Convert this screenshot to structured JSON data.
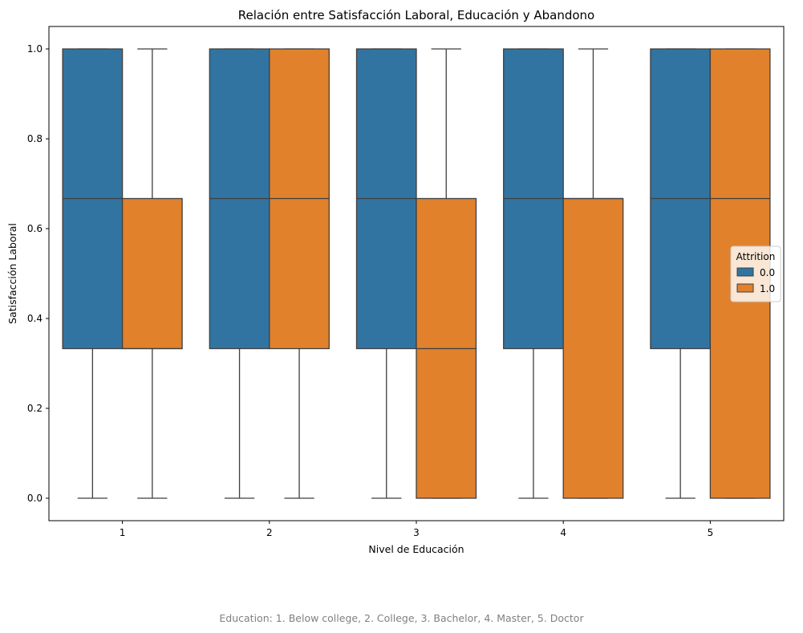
{
  "chart_data": {
    "type": "boxplot",
    "title": "Relación entre Satisfacción Laboral, Educación y Abandono",
    "xlabel": "Nivel de Educación",
    "ylabel": "Satisfacción Laboral",
    "categories": [
      "1",
      "2",
      "3",
      "4",
      "5"
    ],
    "ylim": [
      -0.05,
      1.05
    ],
    "yticks": [
      "0.0",
      "0.2",
      "0.4",
      "0.6",
      "0.8",
      "1.0"
    ],
    "grid": false,
    "legend": {
      "title": "Attrition",
      "placement": "center-right"
    },
    "series": [
      {
        "name": "0.0",
        "color": "#3274a1",
        "boxes": [
          {
            "whisker_low": 0.0,
            "q1": 0.333,
            "median": 0.667,
            "q3": 1.0,
            "whisker_high": 1.0
          },
          {
            "whisker_low": 0.0,
            "q1": 0.333,
            "median": 0.667,
            "q3": 1.0,
            "whisker_high": 1.0
          },
          {
            "whisker_low": 0.0,
            "q1": 0.333,
            "median": 0.667,
            "q3": 1.0,
            "whisker_high": 1.0
          },
          {
            "whisker_low": 0.0,
            "q1": 0.333,
            "median": 0.667,
            "q3": 1.0,
            "whisker_high": 1.0
          },
          {
            "whisker_low": 0.0,
            "q1": 0.333,
            "median": 0.667,
            "q3": 1.0,
            "whisker_high": 1.0
          }
        ]
      },
      {
        "name": "1.0",
        "color": "#e1812c",
        "boxes": [
          {
            "whisker_low": 0.0,
            "q1": 0.333,
            "median": 0.333,
            "q3": 0.667,
            "whisker_high": 1.0
          },
          {
            "whisker_low": 0.0,
            "q1": 0.333,
            "median": 0.667,
            "q3": 1.0,
            "whisker_high": 1.0
          },
          {
            "whisker_low": 0.0,
            "q1": 0.0,
            "median": 0.333,
            "q3": 0.667,
            "whisker_high": 1.0
          },
          {
            "whisker_low": 0.0,
            "q1": 0.0,
            "median": 0.667,
            "q3": 0.667,
            "whisker_high": 1.0
          },
          {
            "whisker_low": 0.0,
            "q1": 0.0,
            "median": 0.667,
            "q3": 1.0,
            "whisker_high": 1.0
          }
        ]
      }
    ],
    "caption": "Education: 1. Below college, 2. College, 3. Bachelor, 4. Master, 5. Doctor"
  }
}
